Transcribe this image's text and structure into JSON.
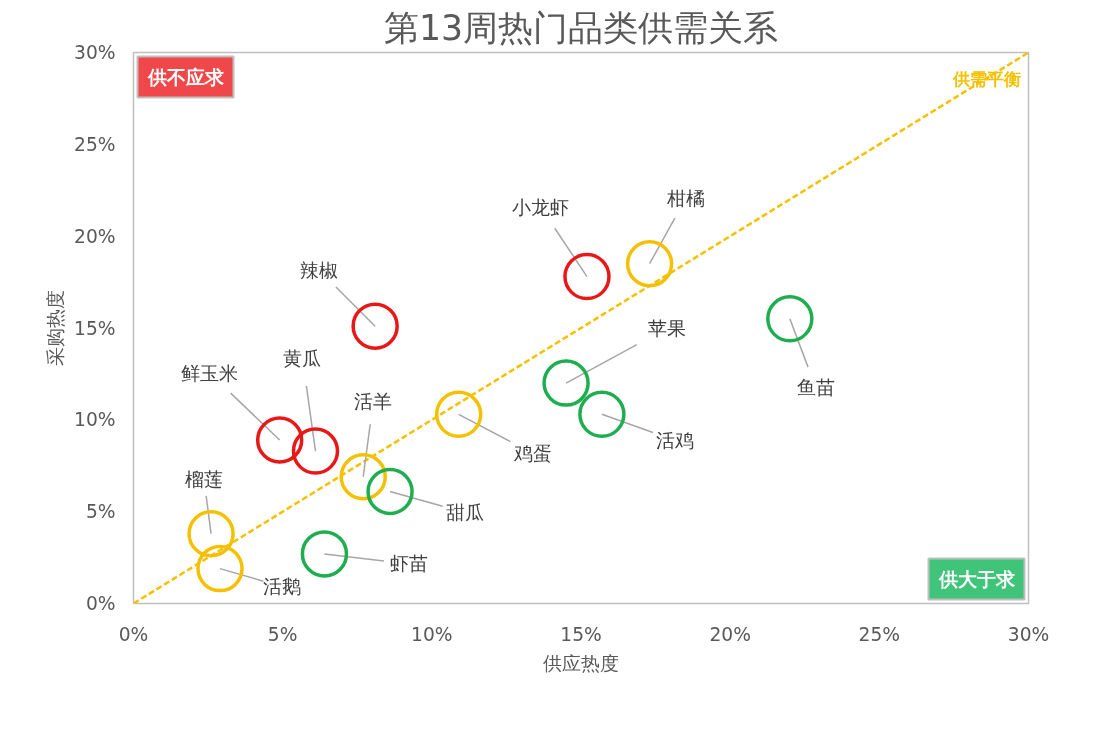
{
  "chart_data": {
    "type": "scatter",
    "title": "第13周热门品类供需关系",
    "xlabel": "供应热度",
    "ylabel": "采购热度",
    "xlim": [
      0,
      30
    ],
    "ylim": [
      0,
      30
    ],
    "xticks": [
      {
        "value": 0,
        "label": "0%"
      },
      {
        "value": 5,
        "label": "5%"
      },
      {
        "value": 10,
        "label": "10%"
      },
      {
        "value": 15,
        "label": "15%"
      },
      {
        "value": 20,
        "label": "20%"
      },
      {
        "value": 25,
        "label": "25%"
      },
      {
        "value": 30,
        "label": "30%"
      }
    ],
    "yticks": [
      {
        "value": 0,
        "label": "0%"
      },
      {
        "value": 5,
        "label": "5%"
      },
      {
        "value": 10,
        "label": "10%"
      },
      {
        "value": 15,
        "label": "15%"
      },
      {
        "value": 20,
        "label": "20%"
      },
      {
        "value": 25,
        "label": "25%"
      },
      {
        "value": 30,
        "label": "30%"
      }
    ],
    "grid": false,
    "annotations": [
      "供不应求",
      "供大于求"
    ],
    "series": [
      {
        "type": "line",
        "name": "供需平衡",
        "color": "#f5c000",
        "line_style": "dashed",
        "x": [
          0,
          30
        ],
        "values": [
          0,
          30
        ]
      },
      {
        "marker": "circle",
        "x": [
          15.2,
          17.3,
          8.1,
          22.0,
          14.5,
          15.7,
          10.9,
          4.9,
          6.1,
          7.7,
          8.6,
          2.6,
          2.9,
          6.4
        ],
        "values": [
          17.8,
          18.5,
          15.1,
          15.5,
          12.0,
          10.3,
          10.3,
          8.9,
          8.3,
          6.9,
          6.1,
          3.8,
          1.9,
          2.7
        ],
        "colors": [
          "#e81818",
          "#f5c000",
          "#e81818",
          "#1fae4f",
          "#1fae4f",
          "#1fae4f",
          "#f5c000",
          "#e81818",
          "#e81818",
          "#f5c000",
          "#1fae4f",
          "#f5c000",
          "#f5c000",
          "#1fae4f"
        ],
        "value_labels": [
          "小龙虾",
          "柑橘",
          "辣椒",
          "鱼苗",
          "苹果",
          "活鸡",
          "鸡蛋",
          "鲜玉米",
          "黄瓜",
          "活羊",
          "甜瓜",
          "榴莲",
          "活鹅",
          "虾苗"
        ]
      }
    ]
  }
}
